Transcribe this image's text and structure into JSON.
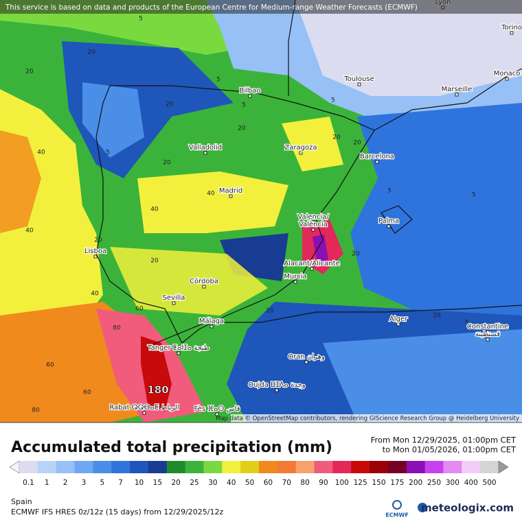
{
  "header": {
    "notice": "This service is based on data and products of the European Centre for Medium-range Weather Forecasts (ECMWF)",
    "attribution": "Map data © OpenStreetMap contributors, rendering GIScience Research Group @ Heidelberg University",
    "max_label": "180"
  },
  "cities": [
    "Lyon",
    "Torino",
    "Monaco",
    "Toulouse",
    "Marseille",
    "Bilbao",
    "Zaragoza",
    "Barcelona",
    "Valladolid",
    "Madrid",
    "Valencia/",
    "València",
    "Palma",
    "Lisboa",
    "Alacant/Alicante",
    "Murcia",
    "Córdoba",
    "Sevilla",
    "Alger",
    "Constantine",
    "قسنطينة",
    "Málaga",
    "Tanger ⵟⴰⵏⵊⴰ طنجة",
    "Oran وهران",
    "Oujda ⵡⵊⴷⴰ وجدة",
    "Rabat ⵕⵕⴱⴰⵟ الرباط",
    "Fès ⴼⴰⵙ فاس"
  ],
  "contour_labels": [
    5,
    20,
    20,
    20,
    40,
    5,
    5,
    20,
    20,
    40,
    40,
    40,
    20,
    20,
    5,
    5,
    20,
    40,
    60,
    60,
    60,
    80,
    80,
    20,
    5,
    5,
    20,
    20,
    5,
    20
  ],
  "legend": {
    "title": "Accumulated total precipitation (mm)",
    "from": "From Mon 12/29/2025, 01:00pm CET",
    "to": "to Mon 01/05/2026, 01:00pm CET",
    "values": [
      0.1,
      1,
      2,
      3,
      5,
      7,
      10,
      15,
      20,
      25,
      30,
      40,
      50,
      60,
      70,
      80,
      90,
      100,
      125,
      150,
      175,
      200,
      250,
      300,
      400,
      500
    ],
    "colors": [
      "#dcdcf0",
      "#b9d3f8",
      "#96c0f6",
      "#6ea8f2",
      "#4a8ee8",
      "#2f74dc",
      "#1e56b9",
      "#173c92",
      "#1f8a2a",
      "#3bb33a",
      "#7ad93f",
      "#f2f03c",
      "#e2cf1a",
      "#f08a1c",
      "#f27a36",
      "#f5a26c",
      "#f15c7c",
      "#e3285a",
      "#c80a0a",
      "#9c0008",
      "#760026",
      "#8a0fb4",
      "#c640ee",
      "#e38af3",
      "#f4ccf8",
      "#d4d4d4"
    ]
  },
  "footer": {
    "region": "Spain",
    "model": "ECMWF IFS HRES 0z/12z (15 days) from  12/29/2025/12z",
    "logo": "ECMWF",
    "brand": "meteologix.com"
  }
}
